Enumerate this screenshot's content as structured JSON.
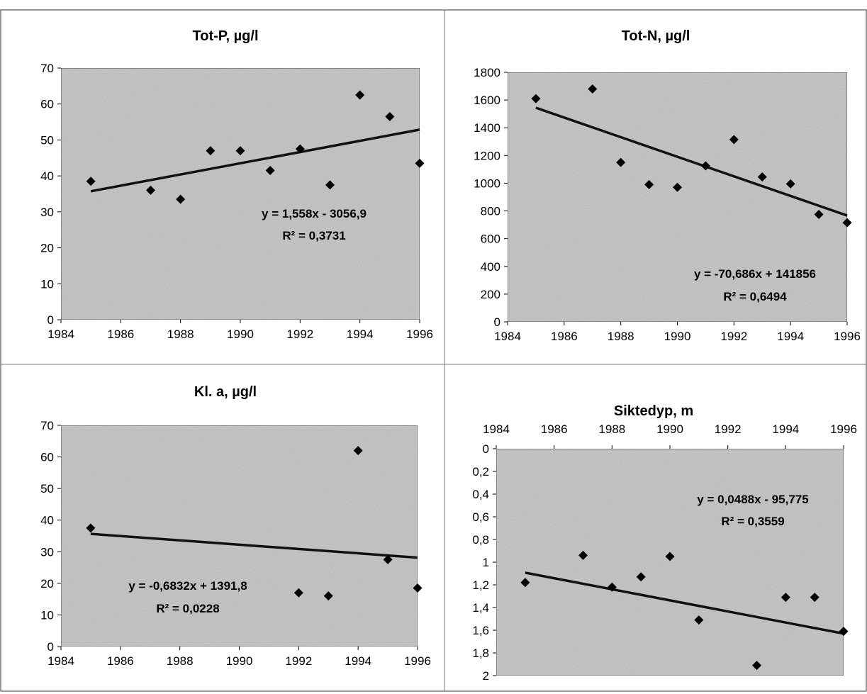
{
  "chart_data": [
    {
      "type": "scatter",
      "title": "Tot-P, µg/l",
      "xlim": [
        1984,
        1996
      ],
      "ylim": [
        0,
        70
      ],
      "x_ticks": [
        1984,
        1986,
        1988,
        1990,
        1992,
        1994,
        1996
      ],
      "y_ticks": [
        0,
        10,
        20,
        30,
        40,
        50,
        60,
        70
      ],
      "y_tick_labels": [
        "0",
        "10",
        "20",
        "30",
        "40",
        "50",
        "60",
        "70"
      ],
      "points": [
        {
          "x": 1985,
          "y": 38.5
        },
        {
          "x": 1987,
          "y": 36
        },
        {
          "x": 1988,
          "y": 33.5
        },
        {
          "x": 1989,
          "y": 47
        },
        {
          "x": 1990,
          "y": 47
        },
        {
          "x": 1991,
          "y": 41.5
        },
        {
          "x": 1992,
          "y": 47.5
        },
        {
          "x": 1993,
          "y": 37.5
        },
        {
          "x": 1994,
          "y": 62.5
        },
        {
          "x": 1995,
          "y": 56.5
        },
        {
          "x": 1996,
          "y": 43.5
        }
      ],
      "trendline": {
        "slope": 1.558,
        "intercept": -3056.9,
        "x_range": [
          1985,
          1996
        ]
      },
      "equation": "y = 1,558x - 3056,9",
      "r_squared": "R² = 0,3731",
      "grid": false,
      "y_inverted": false,
      "x_axis_position": "bottom"
    },
    {
      "type": "scatter",
      "title": "Tot-N, µg/l",
      "xlim": [
        1984,
        1996
      ],
      "ylim": [
        0,
        1800
      ],
      "x_ticks": [
        1984,
        1986,
        1988,
        1990,
        1992,
        1994,
        1996
      ],
      "y_ticks": [
        0,
        200,
        400,
        600,
        800,
        1000,
        1200,
        1400,
        1600,
        1800
      ],
      "y_tick_labels": [
        "0",
        "200",
        "400",
        "600",
        "800",
        "1000",
        "1200",
        "1400",
        "1600",
        "1800"
      ],
      "points": [
        {
          "x": 1985,
          "y": 1610
        },
        {
          "x": 1987,
          "y": 1680
        },
        {
          "x": 1988,
          "y": 1150
        },
        {
          "x": 1989,
          "y": 990
        },
        {
          "x": 1990,
          "y": 970
        },
        {
          "x": 1991,
          "y": 1125
        },
        {
          "x": 1992,
          "y": 1315
        },
        {
          "x": 1993,
          "y": 1045
        },
        {
          "x": 1994,
          "y": 995
        },
        {
          "x": 1995,
          "y": 775
        },
        {
          "x": 1996,
          "y": 715
        }
      ],
      "trendline": {
        "slope": -70.686,
        "intercept": 141856,
        "x_range": [
          1985,
          1996
        ]
      },
      "equation": "y = -70,686x + 141856",
      "r_squared": "R² = 0,6494",
      "grid": false,
      "y_inverted": false,
      "x_axis_position": "bottom"
    },
    {
      "type": "scatter",
      "title": "Kl. a, µg/l",
      "xlim": [
        1984,
        1996
      ],
      "ylim": [
        0,
        70
      ],
      "x_ticks": [
        1984,
        1986,
        1988,
        1990,
        1992,
        1994,
        1996
      ],
      "y_ticks": [
        0,
        10,
        20,
        30,
        40,
        50,
        60,
        70
      ],
      "y_tick_labels": [
        "0",
        "10",
        "20",
        "30",
        "40",
        "50",
        "60",
        "70"
      ],
      "points": [
        {
          "x": 1985,
          "y": 37.5
        },
        {
          "x": 1992,
          "y": 17
        },
        {
          "x": 1993,
          "y": 16
        },
        {
          "x": 1994,
          "y": 62
        },
        {
          "x": 1995,
          "y": 27.5
        },
        {
          "x": 1996,
          "y": 18.5
        }
      ],
      "trendline": {
        "slope": -0.6832,
        "intercept": 1391.8,
        "x_range": [
          1985,
          1996
        ]
      },
      "equation": "y = -0,6832x + 1391,8",
      "r_squared": "R² = 0,0228",
      "grid": false,
      "y_inverted": false,
      "x_axis_position": "bottom"
    },
    {
      "type": "scatter",
      "title": "Siktedyp, m",
      "xlim": [
        1984,
        1996
      ],
      "ylim": [
        0,
        2
      ],
      "x_ticks": [
        1984,
        1986,
        1988,
        1990,
        1992,
        1994,
        1996
      ],
      "y_ticks": [
        0,
        0.2,
        0.4,
        0.6,
        0.8,
        1,
        1.2,
        1.4,
        1.6,
        1.8,
        2
      ],
      "y_tick_labels": [
        "0",
        "0,2",
        "0,4",
        "0,6",
        "0,8",
        "1",
        "1,2",
        "1,4",
        "1,6",
        "1,8",
        "2"
      ],
      "points": [
        {
          "x": 1985,
          "y": 1.18
        },
        {
          "x": 1987,
          "y": 0.94
        },
        {
          "x": 1988,
          "y": 1.22
        },
        {
          "x": 1989,
          "y": 1.13
        },
        {
          "x": 1990,
          "y": 0.95
        },
        {
          "x": 1991,
          "y": 1.51
        },
        {
          "x": 1993,
          "y": 1.91
        },
        {
          "x": 1994,
          "y": 1.31
        },
        {
          "x": 1995,
          "y": 1.31
        },
        {
          "x": 1996,
          "y": 1.61
        }
      ],
      "trendline": {
        "slope": 0.0488,
        "intercept": -95.775,
        "x_range": [
          1985,
          1996
        ]
      },
      "equation": "y = 0,0488x - 95,775",
      "r_squared": "R² = 0,3559",
      "grid": false,
      "y_inverted": true,
      "x_axis_position": "top"
    }
  ]
}
